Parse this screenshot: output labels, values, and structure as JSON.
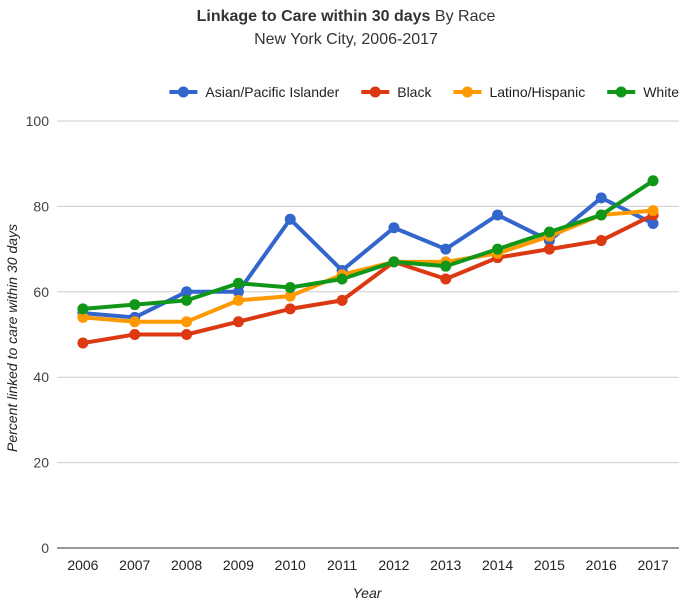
{
  "chart_data": {
    "type": "line",
    "title_bold": "Linkage to Care within 30 days",
    "title_rest": "By Race",
    "subtitle": "New York City, 2006-2017",
    "xlabel": "Year",
    "ylabel": "Percent linked to care within 30 days",
    "ylim": [
      0,
      100
    ],
    "yticks": [
      0,
      20,
      40,
      60,
      80,
      100
    ],
    "grid": true,
    "legend_position": "top-right",
    "categories": [
      "2006",
      "2007",
      "2008",
      "2009",
      "2010",
      "2011",
      "2012",
      "2013",
      "2014",
      "2015",
      "2016",
      "2017"
    ],
    "series": [
      {
        "name": "Asian/Pacific Islander",
        "color": "#3366cc",
        "values": [
          55,
          54,
          60,
          60,
          77,
          65,
          75,
          70,
          78,
          72,
          82,
          76
        ]
      },
      {
        "name": "Black",
        "color": "#dc3912",
        "values": [
          48,
          50,
          50,
          53,
          56,
          58,
          67,
          63,
          68,
          70,
          72,
          78
        ]
      },
      {
        "name": "Latino/Hispanic",
        "color": "#ff9900",
        "values": [
          54,
          53,
          53,
          58,
          59,
          64,
          67,
          67,
          69,
          73,
          78,
          79
        ]
      },
      {
        "name": "White",
        "color": "#109618",
        "values": [
          56,
          57,
          58,
          62,
          61,
          63,
          67,
          66,
          70,
          74,
          78,
          86
        ]
      }
    ]
  }
}
